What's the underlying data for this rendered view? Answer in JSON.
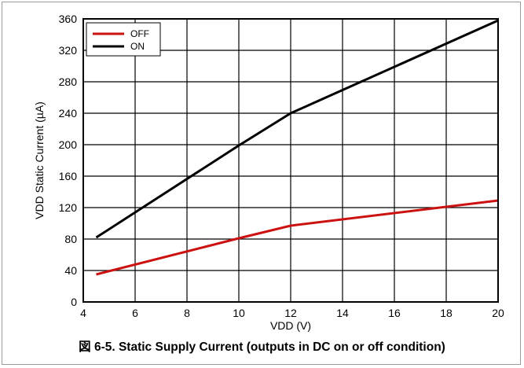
{
  "caption": "図 6-5. Static Supply Current (outputs in DC on or off condition)",
  "chart_data": {
    "type": "line",
    "title": "",
    "xlabel": "VDD (V)",
    "ylabel": "VDD Static Current (µA)",
    "xlim": [
      4,
      20
    ],
    "ylim": [
      0,
      360
    ],
    "xticks": [
      4,
      6,
      8,
      10,
      12,
      14,
      16,
      18,
      20
    ],
    "yticks": [
      0,
      40,
      80,
      120,
      160,
      200,
      240,
      280,
      320,
      360
    ],
    "grid": true,
    "legend_position": "top-left",
    "series": [
      {
        "name": "OFF",
        "color": "#cc1111",
        "x": [
          4.5,
          10,
          12,
          20
        ],
        "y": [
          35,
          81,
          97,
          129
        ]
      },
      {
        "name": "ON",
        "color": "#000000",
        "x": [
          4.5,
          10,
          12,
          20
        ],
        "y": [
          82,
          199,
          240,
          358
        ]
      }
    ]
  }
}
